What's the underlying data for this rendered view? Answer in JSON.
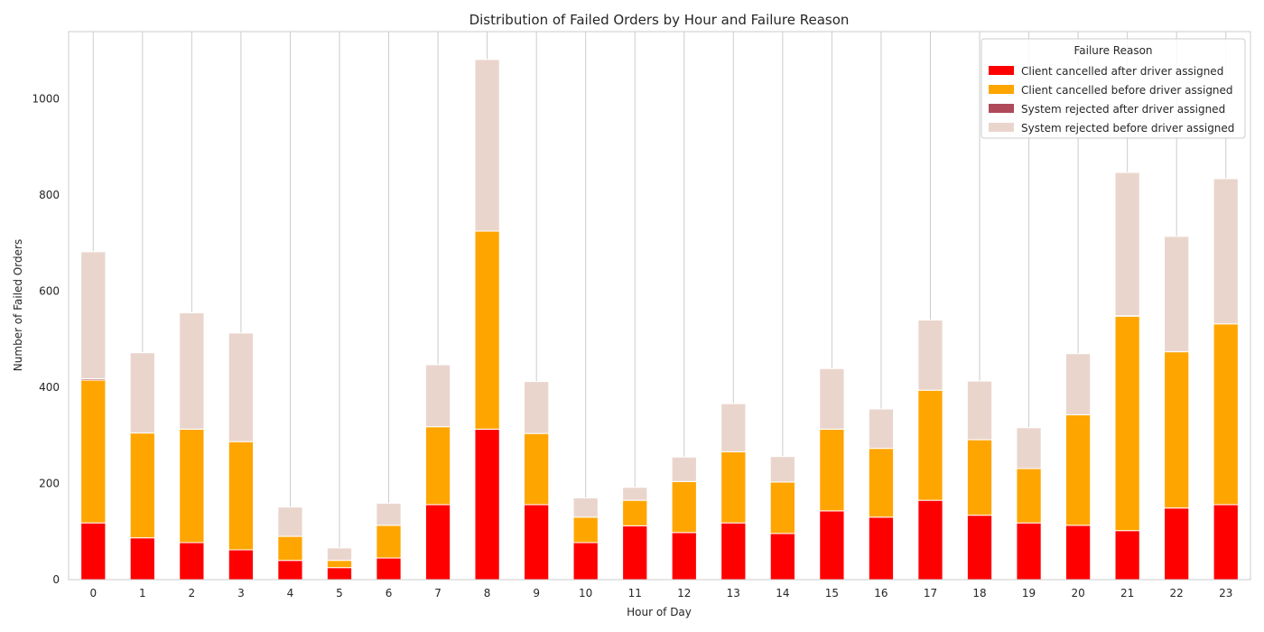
{
  "chart_data": {
    "type": "bar",
    "stacked": true,
    "title": "Distribution of Failed Orders by Hour and Failure Reason",
    "xlabel": "Hour of Day",
    "ylabel": "Number of Failed Orders",
    "categories": [
      "0",
      "1",
      "2",
      "3",
      "4",
      "5",
      "6",
      "7",
      "8",
      "9",
      "10",
      "11",
      "12",
      "13",
      "14",
      "15",
      "16",
      "17",
      "18",
      "19",
      "20",
      "21",
      "22",
      "23"
    ],
    "ylim": [
      0,
      1140
    ],
    "yticks": [
      0,
      200,
      400,
      600,
      800,
      1000
    ],
    "grid": "vertical",
    "legend": {
      "title": "Failure Reason",
      "placement": "top-right"
    },
    "series": [
      {
        "name": "Client cancelled after driver assigned",
        "color": "#ff0000",
        "values": [
          118,
          87,
          77,
          62,
          40,
          25,
          45,
          156,
          313,
          156,
          77,
          112,
          98,
          118,
          96,
          143,
          130,
          165,
          134,
          118,
          113,
          102,
          149,
          156
        ]
      },
      {
        "name": "Client cancelled before driver assigned",
        "color": "#ffa500",
        "values": [
          297,
          218,
          236,
          225,
          50,
          15,
          68,
          162,
          412,
          148,
          53,
          53,
          106,
          148,
          107,
          170,
          143,
          229,
          157,
          113,
          230,
          446,
          325,
          376
        ]
      },
      {
        "name": "System rejected after driver assigned",
        "color": "#b04a5a",
        "values": [
          3,
          0,
          0,
          0,
          0,
          0,
          0,
          0,
          0,
          0,
          0,
          0,
          0,
          0,
          0,
          0,
          0,
          0,
          0,
          0,
          0,
          1,
          0,
          0
        ]
      },
      {
        "name": "System rejected before driver assigned",
        "color": "#ead5cd",
        "values": [
          264,
          167,
          242,
          226,
          61,
          26,
          46,
          129,
          357,
          108,
          40,
          27,
          51,
          100,
          53,
          126,
          82,
          146,
          122,
          85,
          127,
          298,
          240,
          302
        ]
      }
    ]
  }
}
